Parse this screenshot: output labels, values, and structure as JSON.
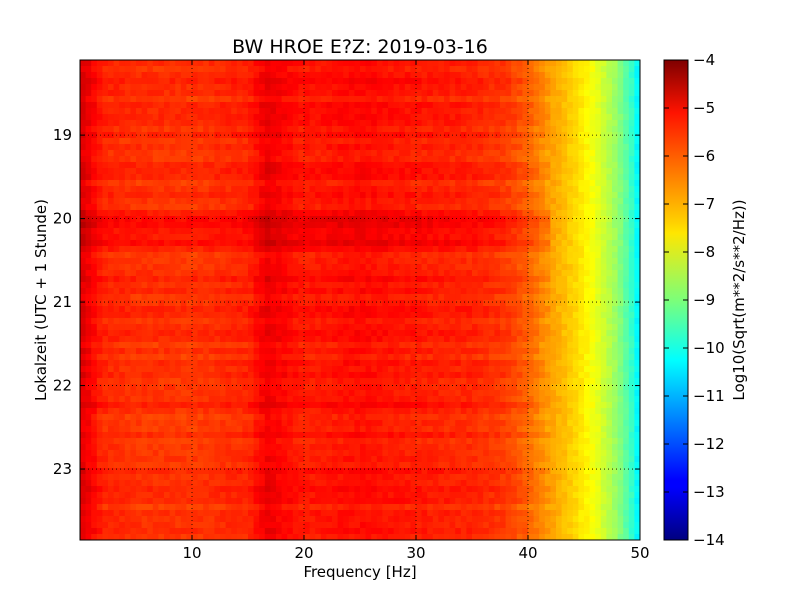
{
  "chart_data": {
    "type": "heatmap",
    "title": "BW HROE E?Z: 2019-03-16",
    "xlabel": "Frequency [Hz]",
    "ylabel": "Lokalzeit (UTC + 1 Stunde)",
    "xlim": [
      0,
      50
    ],
    "ylim": [
      23.85,
      18.1
    ],
    "x_ticks": [
      10,
      20,
      30,
      40,
      50
    ],
    "x_tick_labels": [
      "10",
      "20",
      "30",
      "40",
      "50"
    ],
    "y_ticks": [
      19,
      20,
      21,
      22,
      23
    ],
    "y_tick_labels": [
      "19",
      "20",
      "21",
      "22",
      "23"
    ],
    "grid": true,
    "colorbar": {
      "label": "Log10(Sqrt(m**2/s**2/Hz))",
      "range": [
        -14,
        -4
      ],
      "ticks": [
        -4,
        -5,
        -6,
        -7,
        -8,
        -9,
        -10,
        -11,
        -12,
        -13,
        -14
      ],
      "tick_labels": [
        "−4",
        "−5",
        "−6",
        "−7",
        "−8",
        "−9",
        "−10",
        "−11",
        "−12",
        "−13",
        "−14"
      ],
      "colormap": "jet"
    },
    "frequency_profile": {
      "frequency_hz": [
        0,
        1,
        2,
        5,
        10,
        15,
        16.7,
        20,
        25,
        30,
        35,
        38,
        40,
        42,
        44,
        46,
        48,
        49.5,
        50
      ],
      "log10_amplitude": [
        -4.9,
        -5.2,
        -5.6,
        -5.7,
        -5.75,
        -5.6,
        -5.1,
        -5.5,
        -5.35,
        -5.5,
        -5.6,
        -5.8,
        -6.2,
        -6.8,
        -7.3,
        -7.9,
        -8.8,
        -9.9,
        -10.6
      ]
    }
  }
}
